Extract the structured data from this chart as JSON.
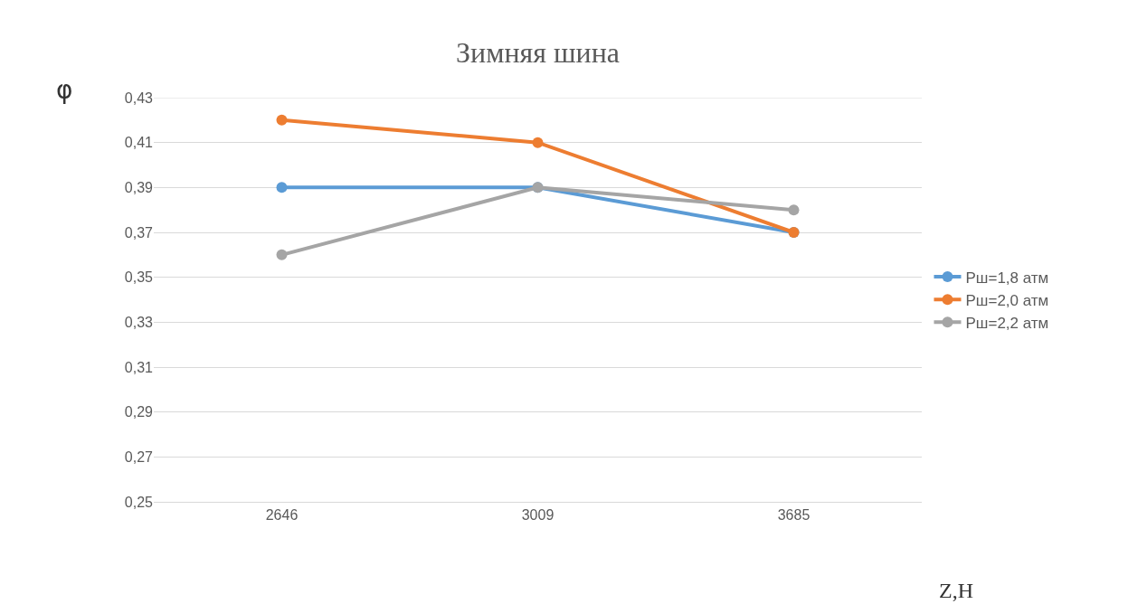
{
  "chart_data": {
    "type": "line",
    "title": "Зимняя шина",
    "xlabel": "Z,H",
    "ylabel": "φ",
    "categories": [
      "2646",
      "3009",
      "3685"
    ],
    "series": [
      {
        "name": "Рш=1,8 атм",
        "color": "#5b9bd5",
        "values": [
          0.39,
          0.39,
          0.37
        ]
      },
      {
        "name": "Рш=2,0 атм",
        "color": "#ed7d31",
        "values": [
          0.42,
          0.41,
          0.37
        ]
      },
      {
        "name": "Рш=2,2 атм",
        "color": "#a5a5a5",
        "values": [
          0.36,
          0.39,
          0.38
        ]
      }
    ],
    "ylim": [
      0.25,
      0.43
    ],
    "yticks": [
      {
        "value": 0.25,
        "label": "0,25"
      },
      {
        "value": 0.27,
        "label": "0,27"
      },
      {
        "value": 0.29,
        "label": "0,29"
      },
      {
        "value": 0.31,
        "label": "0,31"
      },
      {
        "value": 0.33,
        "label": "0,33"
      },
      {
        "value": 0.35,
        "label": "0,35"
      },
      {
        "value": 0.37,
        "label": "0,37"
      },
      {
        "value": 0.39,
        "label": "0,39"
      },
      {
        "value": 0.41,
        "label": "0,41"
      },
      {
        "value": 0.43,
        "label": "0,43"
      }
    ],
    "grid": "y",
    "legend": "right",
    "marker": "circle",
    "line_style": "solid"
  }
}
